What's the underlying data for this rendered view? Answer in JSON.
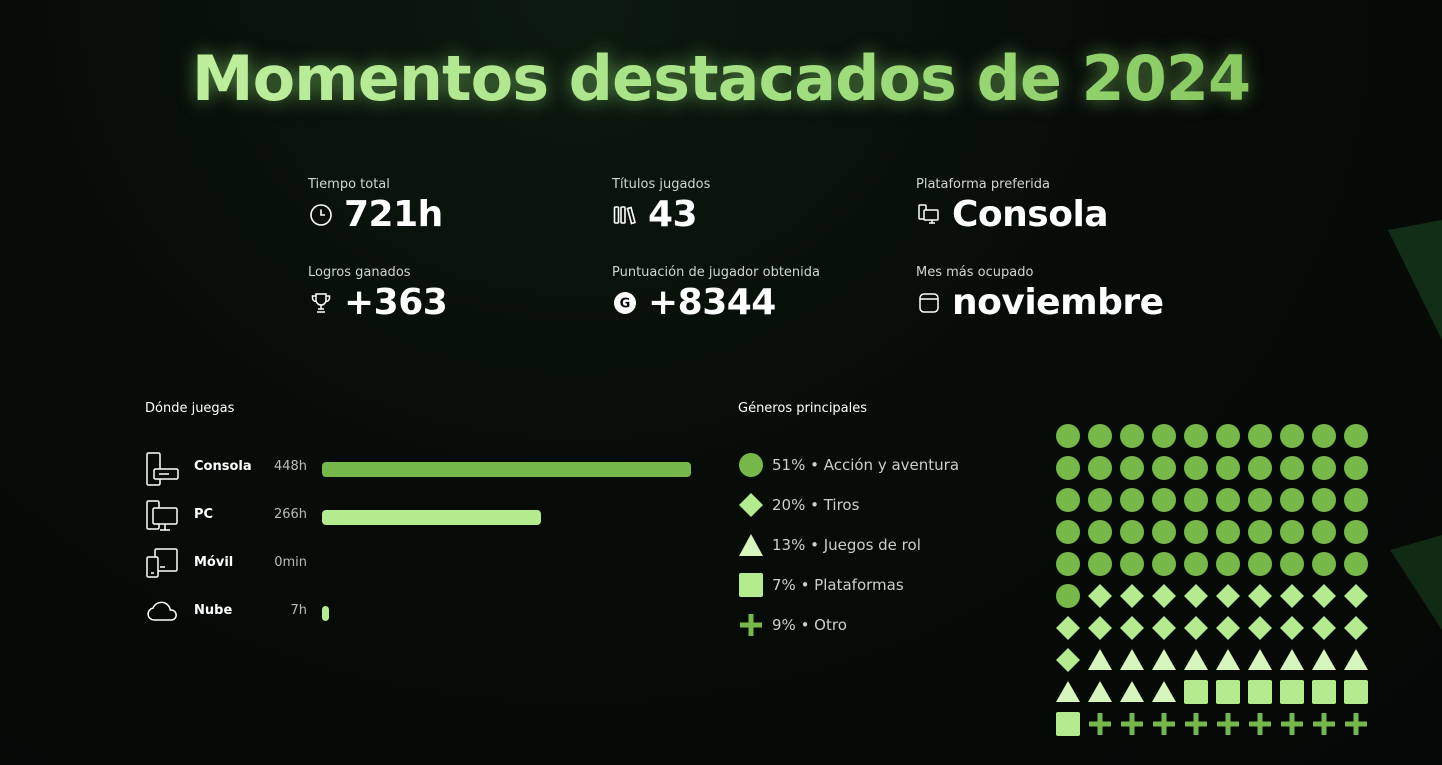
{
  "title": "Momentos destacados de 2024",
  "colors": {
    "accent_dark": "#76b84a",
    "accent_light": "#b4eb8e",
    "accent_pale": "#d7f6be"
  },
  "stats": [
    {
      "label": "Tiempo total",
      "value": "721h",
      "icon": "clock-icon"
    },
    {
      "label": "Títulos jugados",
      "value": "43",
      "icon": "library-icon"
    },
    {
      "label": "Plataforma preferida",
      "value": "Consola",
      "icon": "devices-icon"
    },
    {
      "label": "Logros ganados",
      "value": "+363",
      "icon": "trophy-icon"
    },
    {
      "label": "Puntuación de jugador obtenida",
      "value": "+8344",
      "icon": "gamerscore-icon"
    },
    {
      "label": "Mes más ocupado",
      "value": "noviembre",
      "icon": "calendar-icon"
    }
  ],
  "platforms": {
    "title": "Dónde juegas",
    "items": [
      {
        "name": "Consola",
        "hours": "448h",
        "fraction": 1.0,
        "icon": "console-icon"
      },
      {
        "name": "PC",
        "hours": "266h",
        "fraction": 0.594,
        "icon": "pc-icon"
      },
      {
        "name": "Móvil",
        "hours": "0min",
        "fraction": 0.0,
        "icon": "mobile-icon"
      },
      {
        "name": "Nube",
        "hours": "7h",
        "fraction": 0.016,
        "icon": "cloud-icon"
      }
    ]
  },
  "genres": {
    "title": "Géneros principales",
    "items": [
      {
        "text": "51% • Acción y aventura",
        "shape": "circle",
        "count": 51,
        "color": "#76b84a"
      },
      {
        "text": "20% • Tiros",
        "shape": "diamond",
        "count": 20,
        "color": "#b4eb8e"
      },
      {
        "text": "13% • Juegos de rol",
        "shape": "triangle",
        "count": 13,
        "color": "#d7f6be"
      },
      {
        "text": "7% • Plataformas",
        "shape": "square",
        "count": 7,
        "color": "#b4eb8e"
      },
      {
        "text": "9% • Otro",
        "shape": "plus",
        "count": 9,
        "color": "#76b84a"
      }
    ]
  }
}
